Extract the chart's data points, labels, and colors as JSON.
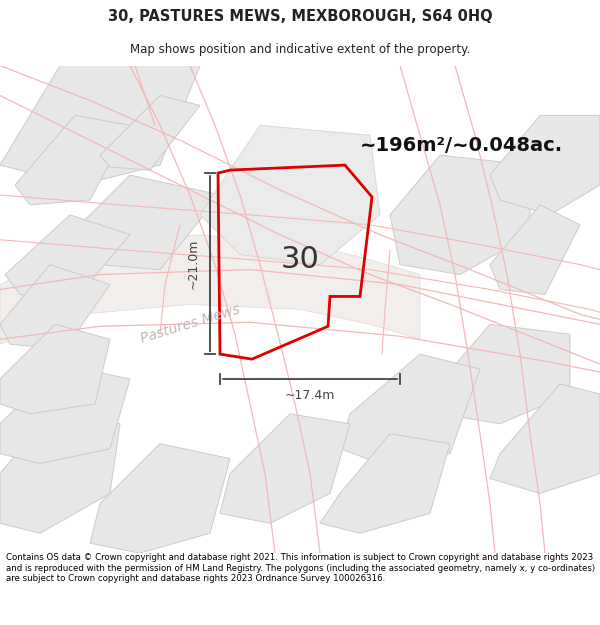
{
  "title_line1": "30, PASTURES MEWS, MEXBOROUGH, S64 0HQ",
  "title_line2": "Map shows position and indicative extent of the property.",
  "footer_text": "Contains OS data © Crown copyright and database right 2021. This information is subject to Crown copyright and database rights 2023 and is reproduced with the permission of HM Land Registry. The polygons (including the associated geometry, namely x, y co-ordinates) are subject to Crown copyright and database rights 2023 Ordnance Survey 100026316.",
  "area_label": "~196m²/~0.048ac.",
  "dimension_h": "~21.0m",
  "dimension_w": "~17.4m",
  "plot_number": "30",
  "street_label": "Pastures Mews",
  "map_bg": "#ffffff",
  "prop_edge": "#dd0000",
  "building_fill": "#e8e8e8",
  "building_edge": "#cccccc",
  "road_line_color": "#f5b8b8",
  "dim_color": "#444444",
  "street_label_color": "#c0b8b8",
  "text_color": "#222222"
}
